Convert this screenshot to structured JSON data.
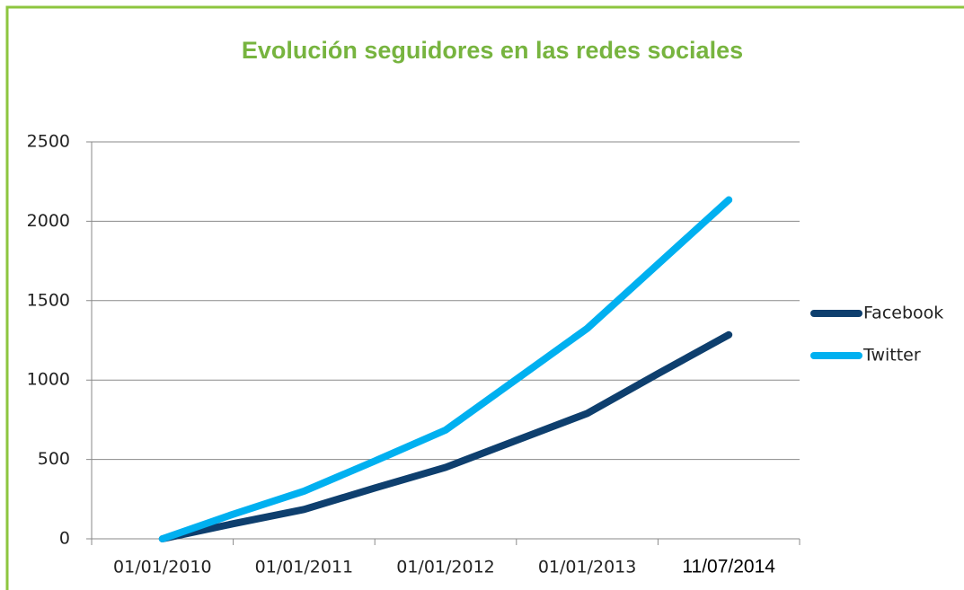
{
  "chart_data": {
    "type": "line",
    "title": "Evolución seguidores en las redes sociales",
    "categories": [
      "01/01/2010",
      null,
      "01/01/2011",
      null,
      "01/01/2012",
      null,
      "01/01/2013",
      null,
      "11/07/2014"
    ],
    "series": [
      {
        "name": "Facebook",
        "color": "#0e3f6e",
        "values": [
          0,
          95,
          185,
          320,
          450,
          620,
          790,
          1040,
          1285
        ]
      },
      {
        "name": "Twitter",
        "color": "#00b0f0",
        "values": [
          0,
          155,
          300,
          490,
          685,
          1005,
          1325,
          1730,
          2135
        ]
      }
    ],
    "ylim": [
      0,
      2500
    ],
    "yticks": [
      0,
      500,
      1000,
      1500,
      2000,
      2500
    ],
    "grid": true,
    "legend": "right"
  }
}
